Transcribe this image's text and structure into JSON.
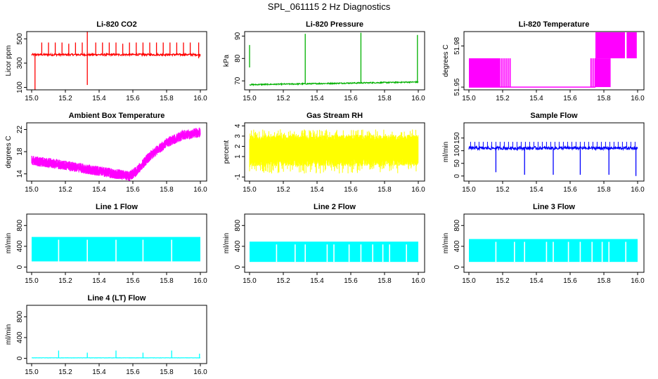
{
  "figure_title": "SPL_061115  2 Hz Diagnostics",
  "chart_data": [
    {
      "id": "co2",
      "type": "line",
      "title": "Li-820 CO2",
      "ylabel": "Licor ppm",
      "color": "#ff0000",
      "x": [
        15.0,
        16.0
      ],
      "xticks": [
        15.0,
        15.2,
        15.4,
        15.6,
        15.8,
        16.0
      ],
      "xtick_labels": [
        "15.0",
        "15.2",
        "15.4",
        "15.6",
        "15.8",
        "16.0"
      ],
      "ylim": [
        80,
        560
      ],
      "yticks": [
        100,
        300,
        500
      ],
      "ytick_labels": [
        "100",
        "300",
        "500"
      ],
      "pattern": "flat",
      "base": 370,
      "noise": 8,
      "spikes": [
        {
          "x": 15.02,
          "lo": 80,
          "hi": 370
        },
        {
          "x": 15.06,
          "lo": 370,
          "hi": 470
        },
        {
          "x": 15.1,
          "lo": 370,
          "hi": 470
        },
        {
          "x": 15.14,
          "lo": 370,
          "hi": 470
        },
        {
          "x": 15.18,
          "lo": 370,
          "hi": 470
        },
        {
          "x": 15.22,
          "lo": 370,
          "hi": 460
        },
        {
          "x": 15.26,
          "lo": 370,
          "hi": 470
        },
        {
          "x": 15.3,
          "lo": 370,
          "hi": 470
        },
        {
          "x": 15.33,
          "lo": 120,
          "hi": 570
        },
        {
          "x": 15.38,
          "lo": 370,
          "hi": 470
        },
        {
          "x": 15.42,
          "lo": 370,
          "hi": 470
        },
        {
          "x": 15.46,
          "lo": 370,
          "hi": 470
        },
        {
          "x": 15.5,
          "lo": 370,
          "hi": 470
        },
        {
          "x": 15.54,
          "lo": 370,
          "hi": 460
        },
        {
          "x": 15.58,
          "lo": 370,
          "hi": 470
        },
        {
          "x": 15.62,
          "lo": 370,
          "hi": 470
        },
        {
          "x": 15.66,
          "lo": 370,
          "hi": 470
        },
        {
          "x": 15.7,
          "lo": 370,
          "hi": 470
        },
        {
          "x": 15.74,
          "lo": 370,
          "hi": 470
        },
        {
          "x": 15.78,
          "lo": 370,
          "hi": 470
        },
        {
          "x": 15.82,
          "lo": 370,
          "hi": 470
        },
        {
          "x": 15.86,
          "lo": 370,
          "hi": 470
        },
        {
          "x": 15.9,
          "lo": 370,
          "hi": 470
        },
        {
          "x": 15.94,
          "lo": 370,
          "hi": 470
        },
        {
          "x": 15.99,
          "lo": 340,
          "hi": 470
        }
      ]
    },
    {
      "id": "pressure",
      "type": "line",
      "title": "Li-820 Pressure",
      "ylabel": "kPa",
      "color": "#00b000",
      "x": [
        15.0,
        16.0
      ],
      "xticks": [
        15.0,
        15.2,
        15.4,
        15.6,
        15.8,
        16.0
      ],
      "xtick_labels": [
        "15.0",
        "15.2",
        "15.4",
        "15.6",
        "15.8",
        "16.0"
      ],
      "ylim": [
        66,
        92
      ],
      "yticks": [
        70,
        80,
        90
      ],
      "ytick_labels": [
        "70",
        "80",
        "90"
      ],
      "pattern": "slope",
      "start": 68.3,
      "end": 69.5,
      "noise": 0.25,
      "spikes": [
        {
          "x": 15.0,
          "lo": 76,
          "hi": 86
        },
        {
          "x": 15.33,
          "lo": 69,
          "hi": 91
        },
        {
          "x": 15.66,
          "lo": 69,
          "hi": 91.5
        },
        {
          "x": 15.995,
          "lo": 69,
          "hi": 90.5
        }
      ]
    },
    {
      "id": "temp",
      "type": "area",
      "title": "Li-820 Temperature",
      "ylabel": "degrees C",
      "color": "#ff00ff",
      "x": [
        15.0,
        16.0
      ],
      "xticks": [
        15.0,
        15.2,
        15.4,
        15.6,
        15.8,
        16.0
      ],
      "xtick_labels": [
        "15.0",
        "15.2",
        "15.4",
        "15.6",
        "15.8",
        "16.0"
      ],
      "ylim": [
        51.948,
        51.9905
      ],
      "yticks": [
        51.95,
        51.98
      ],
      "ytick_labels": [
        "51.95",
        "51.98"
      ],
      "bands": [
        {
          "x0": 15.0,
          "x1": 15.18,
          "lo": 51.95,
          "hi": 51.971
        },
        {
          "x0": 15.18,
          "x1": 15.245,
          "lo": 51.95,
          "hi": 51.971,
          "gapped": true
        },
        {
          "x0": 15.72,
          "x1": 15.75,
          "lo": 51.95,
          "hi": 51.971,
          "gapped": true
        },
        {
          "x0": 15.75,
          "x1": 15.84,
          "lo": 51.95,
          "hi": 51.971
        },
        {
          "x0": 15.75,
          "x1": 15.925,
          "lo": 51.971,
          "hi": 51.99
        },
        {
          "x0": 15.935,
          "x1": 15.995,
          "lo": 51.971,
          "hi": 51.99
        }
      ],
      "baseline": 51.95
    },
    {
      "id": "ambient",
      "type": "line",
      "title": "Ambient Box Temperature",
      "ylabel": "degrees C",
      "color": "#ff00ff",
      "x": [
        15.0,
        16.0
      ],
      "xticks": [
        15.0,
        15.2,
        15.4,
        15.6,
        15.8,
        16.0
      ],
      "xtick_labels": [
        "15.0",
        "15.2",
        "15.4",
        "15.6",
        "15.8",
        "16.0"
      ],
      "ylim": [
        12.7,
        23.2
      ],
      "yticks": [
        14,
        18,
        22
      ],
      "ytick_labels": [
        "14",
        "18",
        "22"
      ],
      "pattern": "curve",
      "points": [
        [
          15.0,
          16.4
        ],
        [
          15.1,
          16.0
        ],
        [
          15.2,
          15.5
        ],
        [
          15.3,
          15.0
        ],
        [
          15.4,
          14.5
        ],
        [
          15.5,
          14.0
        ],
        [
          15.58,
          13.6
        ],
        [
          15.62,
          14.4
        ],
        [
          15.7,
          17.2
        ],
        [
          15.8,
          19.6
        ],
        [
          15.9,
          21.0
        ],
        [
          16.0,
          21.5
        ]
      ],
      "noise": 0.9
    },
    {
      "id": "rh",
      "type": "line",
      "title": "Gas Stream RH",
      "ylabel": "percent",
      "color": "#ffff00",
      "x": [
        15.0,
        16.0
      ],
      "xticks": [
        15.0,
        15.2,
        15.4,
        15.6,
        15.8,
        16.0
      ],
      "xtick_labels": [
        "15.0",
        "15.2",
        "15.4",
        "15.6",
        "15.8",
        "16.0"
      ],
      "ylim": [
        -1.4,
        4.3
      ],
      "yticks": [
        -1,
        1,
        2,
        3,
        4
      ],
      "ytick_labels": [
        "-1",
        "1",
        "2",
        "3",
        "4"
      ],
      "pattern": "band",
      "lo": -0.3,
      "hi": 3.3,
      "core_lo": 0.9,
      "core_hi": 2.4
    },
    {
      "id": "sample",
      "type": "line",
      "title": "Sample Flow",
      "ylabel": "ml/min",
      "color": "#0000ff",
      "x": [
        15.0,
        16.0
      ],
      "xticks": [
        15.0,
        15.2,
        15.4,
        15.6,
        15.8,
        16.0
      ],
      "xtick_labels": [
        "15.0",
        "15.2",
        "15.4",
        "15.6",
        "15.8",
        "16.0"
      ],
      "ylim": [
        -20,
        210
      ],
      "yticks": [
        0,
        50,
        100,
        150
      ],
      "ytick_labels": [
        "0",
        "50",
        "100",
        "150"
      ],
      "pattern": "flat",
      "base": 110,
      "noise": 6,
      "spikes": [
        {
          "x": 15.16,
          "lo": 15,
          "hi": 110
        },
        {
          "x": 15.33,
          "lo": 5,
          "hi": 110
        },
        {
          "x": 15.5,
          "lo": 5,
          "hi": 110
        },
        {
          "x": 15.66,
          "lo": 5,
          "hi": 110
        },
        {
          "x": 15.83,
          "lo": 5,
          "hi": 110
        },
        {
          "x": 15.99,
          "lo": 0,
          "hi": 110
        }
      ],
      "teeth": {
        "step": 0.025,
        "hi": 135
      }
    },
    {
      "id": "line1",
      "type": "area",
      "title": "Line 1 Flow",
      "ylabel": "ml/min",
      "color": "#00ffff",
      "x": [
        15.0,
        16.0
      ],
      "xticks": [
        15.0,
        15.2,
        15.4,
        15.6,
        15.8,
        16.0
      ],
      "xtick_labels": [
        "15.0",
        "15.2",
        "15.4",
        "15.6",
        "15.8",
        "16.0"
      ],
      "ylim": [
        -100,
        1020
      ],
      "yticks": [
        0,
        400,
        800
      ],
      "ytick_labels": [
        "0",
        "400",
        "800"
      ],
      "pattern": "fill",
      "lo": 110,
      "hi": 580,
      "gaps": [
        15.16,
        15.33,
        15.5,
        15.66,
        15.83
      ]
    },
    {
      "id": "line2",
      "type": "area",
      "title": "Line 2 Flow",
      "ylabel": "ml/min",
      "color": "#00ffff",
      "x": [
        15.0,
        16.0
      ],
      "xticks": [
        15.0,
        15.2,
        15.4,
        15.6,
        15.8,
        16.0
      ],
      "xtick_labels": [
        "15.0",
        "15.2",
        "15.4",
        "15.6",
        "15.8",
        "16.0"
      ],
      "ylim": [
        -100,
        1020
      ],
      "yticks": [
        0,
        400,
        800
      ],
      "ytick_labels": [
        "0",
        "400",
        "800"
      ],
      "pattern": "fill",
      "lo": 100,
      "hi": 490,
      "gaps": [
        15.16,
        15.27,
        15.33,
        15.46,
        15.5,
        15.59,
        15.66,
        15.73,
        15.79,
        15.83,
        15.93
      ]
    },
    {
      "id": "line3",
      "type": "area",
      "title": "Line 3 Flow",
      "ylabel": "ml/min",
      "color": "#00ffff",
      "x": [
        15.0,
        16.0
      ],
      "xticks": [
        15.0,
        15.2,
        15.4,
        15.6,
        15.8,
        16.0
      ],
      "xtick_labels": [
        "15.0",
        "15.2",
        "15.4",
        "15.6",
        "15.8",
        "16.0"
      ],
      "ylim": [
        -100,
        1020
      ],
      "yticks": [
        0,
        400,
        800
      ],
      "ytick_labels": [
        "0",
        "400",
        "800"
      ],
      "pattern": "fill",
      "lo": 100,
      "hi": 540,
      "gaps": [
        15.16,
        15.27,
        15.33,
        15.46,
        15.5,
        15.59,
        15.66,
        15.73,
        15.79,
        15.83,
        15.93
      ]
    },
    {
      "id": "line4",
      "type": "line",
      "title": "Line 4 (LT) Flow",
      "ylabel": "ml/min",
      "color": "#00ffff",
      "x": [
        15.0,
        16.0
      ],
      "xticks": [
        15.0,
        15.2,
        15.4,
        15.6,
        15.8,
        16.0
      ],
      "xtick_labels": [
        "15.0",
        "15.2",
        "15.4",
        "15.6",
        "15.8",
        "16.0"
      ],
      "ylim": [
        -100,
        1020
      ],
      "yticks": [
        0,
        400,
        800
      ],
      "ytick_labels": [
        "0",
        "400",
        "800"
      ],
      "pattern": "flat",
      "base": 10,
      "noise": 2,
      "spikes": [
        {
          "x": 15.16,
          "lo": 10,
          "hi": 150
        },
        {
          "x": 15.33,
          "lo": 10,
          "hi": 110
        },
        {
          "x": 15.5,
          "lo": 10,
          "hi": 150
        },
        {
          "x": 15.66,
          "lo": 10,
          "hi": 110
        },
        {
          "x": 15.83,
          "lo": 10,
          "hi": 150
        },
        {
          "x": 15.995,
          "lo": 10,
          "hi": 90
        }
      ]
    }
  ]
}
